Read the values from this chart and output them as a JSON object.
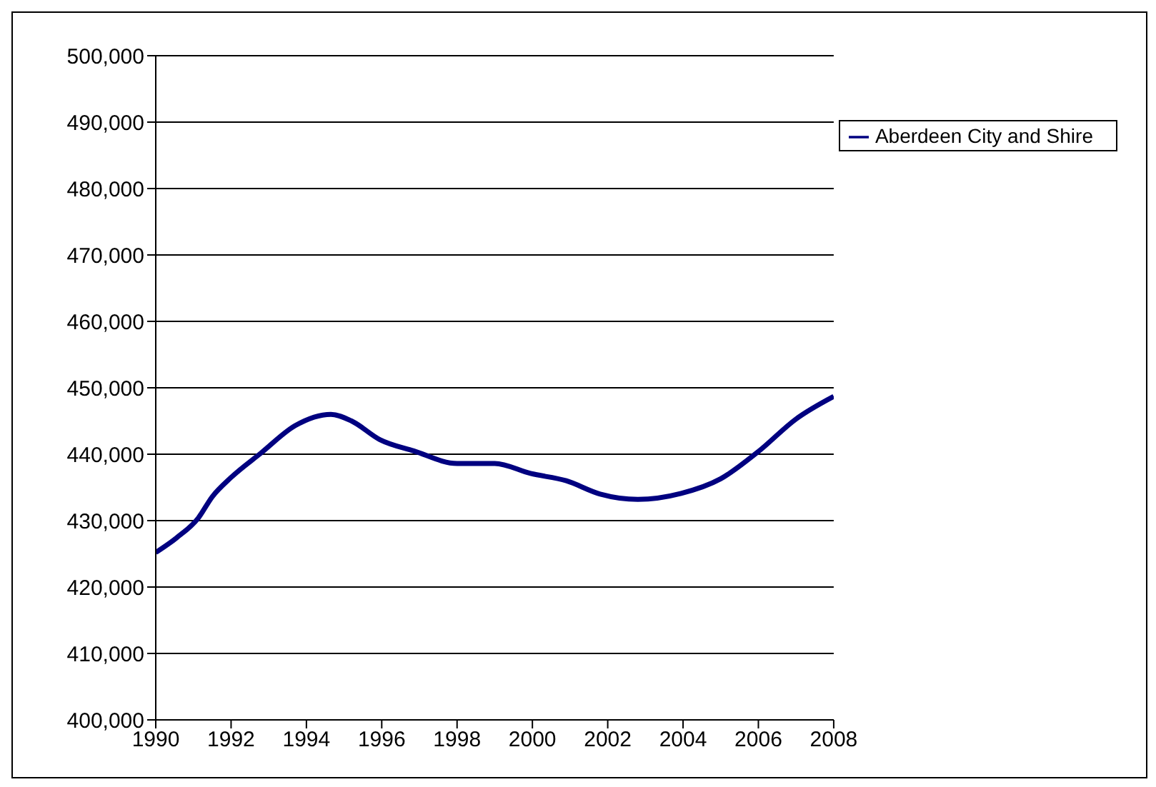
{
  "chart_data": {
    "type": "line",
    "x": [
      1990,
      1990.55,
      1991.13,
      1991.5,
      1992,
      1992.8,
      1993.7,
      1994.65,
      1995.2,
      1995.95,
      1996.85,
      1998,
      1999,
      1999.95,
      2000.9,
      2001.8,
      2002.8,
      2003.95,
      2005,
      2006,
      2007,
      2008
    ],
    "series": [
      {
        "name": "Aberdeen City and Shire",
        "color": "#000080",
        "values": [
          425200,
          427400,
          430400,
          433600,
          436500,
          440200,
          444300,
          446000,
          445000,
          442200,
          440500,
          438600,
          438600,
          437100,
          436000,
          434000,
          433200,
          434100,
          436300,
          440400,
          445300,
          448700
        ]
      }
    ],
    "xlim": [
      1990,
      2008
    ],
    "xticks": [
      1990,
      1992,
      1994,
      1996,
      1998,
      2000,
      2002,
      2004,
      2006,
      2008
    ],
    "ylim": [
      400000,
      500000
    ],
    "yticks": [
      {
        "value": 400000,
        "label": "400,000"
      },
      {
        "value": 410000,
        "label": "410,000"
      },
      {
        "value": 420000,
        "label": "420,000"
      },
      {
        "value": 430000,
        "label": "430,000"
      },
      {
        "value": 440000,
        "label": "440,000"
      },
      {
        "value": 450000,
        "label": "450,000"
      },
      {
        "value": 460000,
        "label": "460,000"
      },
      {
        "value": 470000,
        "label": "470,000"
      },
      {
        "value": 480000,
        "label": "480,000"
      },
      {
        "value": 490000,
        "label": "490,000"
      },
      {
        "value": 500000,
        "label": "500,000"
      }
    ],
    "grid": "y",
    "legend": "top right",
    "marker": "none",
    "line_style": "solid"
  }
}
